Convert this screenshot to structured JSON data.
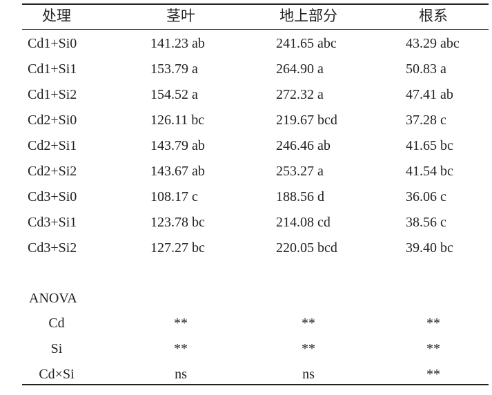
{
  "table": {
    "header": [
      "处理",
      "茎叶",
      "地上部分",
      "根系"
    ],
    "rows": [
      [
        "Cd1+Si0",
        "141.23 ab",
        "241.65 abc",
        "43.29 abc"
      ],
      [
        "Cd1+Si1",
        "153.79 a",
        "264.90 a",
        "50.83 a"
      ],
      [
        "Cd1+Si2",
        "154.52 a",
        "272.32 a",
        "47.41 ab"
      ],
      [
        "Cd2+Si0",
        "126.11 bc",
        "219.67 bcd",
        "37.28 c"
      ],
      [
        "Cd2+Si1",
        "143.79 ab",
        "246.46 ab",
        "41.65 bc"
      ],
      [
        "Cd2+Si2",
        "143.67 ab",
        "253.27 a",
        "41.54 bc"
      ],
      [
        "Cd3+Si0",
        "108.17 c",
        "188.56 d",
        "36.06 c"
      ],
      [
        "Cd3+Si1",
        "123.78 bc",
        "214.08 cd",
        "38.56 c"
      ],
      [
        "Cd3+Si2",
        "127.27 bc",
        "220.05 bcd",
        "39.40 bc"
      ]
    ],
    "anova": {
      "title": "ANOVA",
      "rows": [
        [
          "Cd",
          "**",
          "**",
          "**"
        ],
        [
          "Si",
          "**",
          "**",
          "**"
        ],
        [
          "Cd×Si",
          "ns",
          "ns",
          "**"
        ]
      ]
    }
  }
}
